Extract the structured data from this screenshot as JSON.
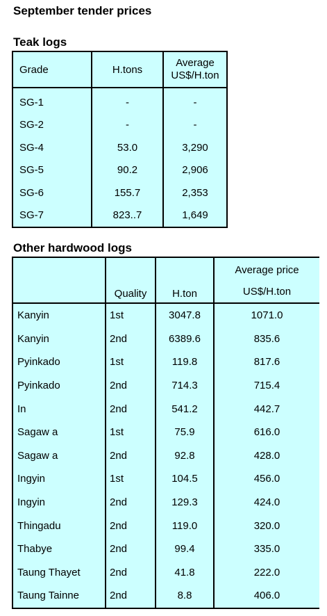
{
  "title": "September tender prices",
  "teak": {
    "heading": "Teak logs",
    "headers": {
      "grade": "Grade",
      "tons": "H.tons",
      "price_line1": "Average",
      "price_line2": "US$/H.ton"
    },
    "rows": [
      {
        "grade": "SG-1",
        "tons": "-",
        "price": "-"
      },
      {
        "grade": "SG-2",
        "tons": "-",
        "price": "-"
      },
      {
        "grade": "SG-4",
        "tons": "53.0",
        "price": "3,290"
      },
      {
        "grade": "SG-5",
        "tons": "90.2",
        "price": "2,906"
      },
      {
        "grade": "SG-6",
        "tons": "155.7",
        "price": "2,353"
      },
      {
        "grade": "SG-7",
        "tons": "823..7",
        "price": "1,649"
      }
    ]
  },
  "hardwood": {
    "heading": "Other hardwood logs",
    "headers": {
      "species": "",
      "quality": "Quality",
      "ton": "H.ton",
      "price_line1": "Average price",
      "price_line2": "US$/H.ton"
    },
    "rows": [
      {
        "species": "Kanyin",
        "quality": "1st",
        "ton": "3047.8",
        "price": "1071.0"
      },
      {
        "species": "Kanyin",
        "quality": "2nd",
        "ton": "6389.6",
        "price": "835.6"
      },
      {
        "species": "Pyinkado",
        "quality": "1st",
        "ton": "119.8",
        "price": "817.6"
      },
      {
        "species": "Pyinkado",
        "quality": "2nd",
        "ton": "714.3",
        "price": "715.4"
      },
      {
        "species": "In",
        "quality": "2nd",
        "ton": "541.2",
        "price": "442.7"
      },
      {
        "species": "Sagaw a",
        "quality": "1st",
        "ton": "75.9",
        "price": "616.0"
      },
      {
        "species": "Sagaw a",
        "quality": "2nd",
        "ton": "92.8",
        "price": "428.0"
      },
      {
        "species": "Ingyin",
        "quality": "1st",
        "ton": "104.5",
        "price": "456.0"
      },
      {
        "species": "Ingyin",
        "quality": "2nd",
        "ton": "129.3",
        "price": "424.0"
      },
      {
        "species": "Thingadu",
        "quality": "2nd",
        "ton": "119.0",
        "price": "320.0"
      },
      {
        "species": "Thabye",
        "quality": "2nd",
        "ton": "99.4",
        "price": "335.0"
      },
      {
        "species": "Taung Thayet",
        "quality": "2nd",
        "ton": "41.8",
        "price": "222.0"
      },
      {
        "species": "Taung Tainne",
        "quality": "2nd",
        "ton": "8.8",
        "price": "406.0"
      }
    ]
  }
}
